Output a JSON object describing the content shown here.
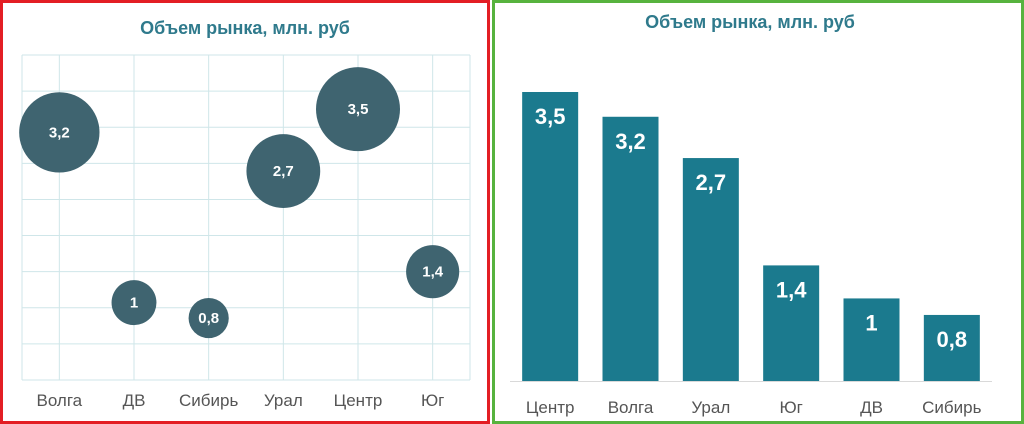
{
  "chart_data": [
    {
      "type": "scatter",
      "title": "Объем рынка, млн. руб",
      "categories": [
        "Волга",
        "ДВ",
        "Сибирь",
        "Урал",
        "Центр",
        "Юг"
      ],
      "values": [
        3.2,
        1,
        0.8,
        2.7,
        3.5,
        1.4
      ],
      "data_labels": [
        "3,2",
        "1",
        "0,8",
        "2,7",
        "3,5",
        "1,4"
      ],
      "bubble_sizes": [
        3.2,
        1,
        0.8,
        2.7,
        3.5,
        1.4
      ],
      "ylim": [
        0,
        4.2
      ],
      "grid": true,
      "legend": "none",
      "colors": {
        "bubble": "#3f6470",
        "grid": "#cfe6e9",
        "title": "#2f7a8c"
      }
    },
    {
      "type": "bar",
      "title": "Объем рынка, млн. руб",
      "categories": [
        "Центр",
        "Волга",
        "Урал",
        "Юг",
        "ДВ",
        "Сибирь"
      ],
      "values": [
        3.5,
        3.2,
        2.7,
        1.4,
        1,
        0.8
      ],
      "data_labels": [
        "3,5",
        "3,2",
        "2,7",
        "1,4",
        "1",
        "0,8"
      ],
      "ylim": [
        0,
        3.5
      ],
      "grid": false,
      "legend": "none",
      "colors": {
        "bar": "#1b7a8e",
        "title": "#2f7a8c"
      }
    }
  ]
}
